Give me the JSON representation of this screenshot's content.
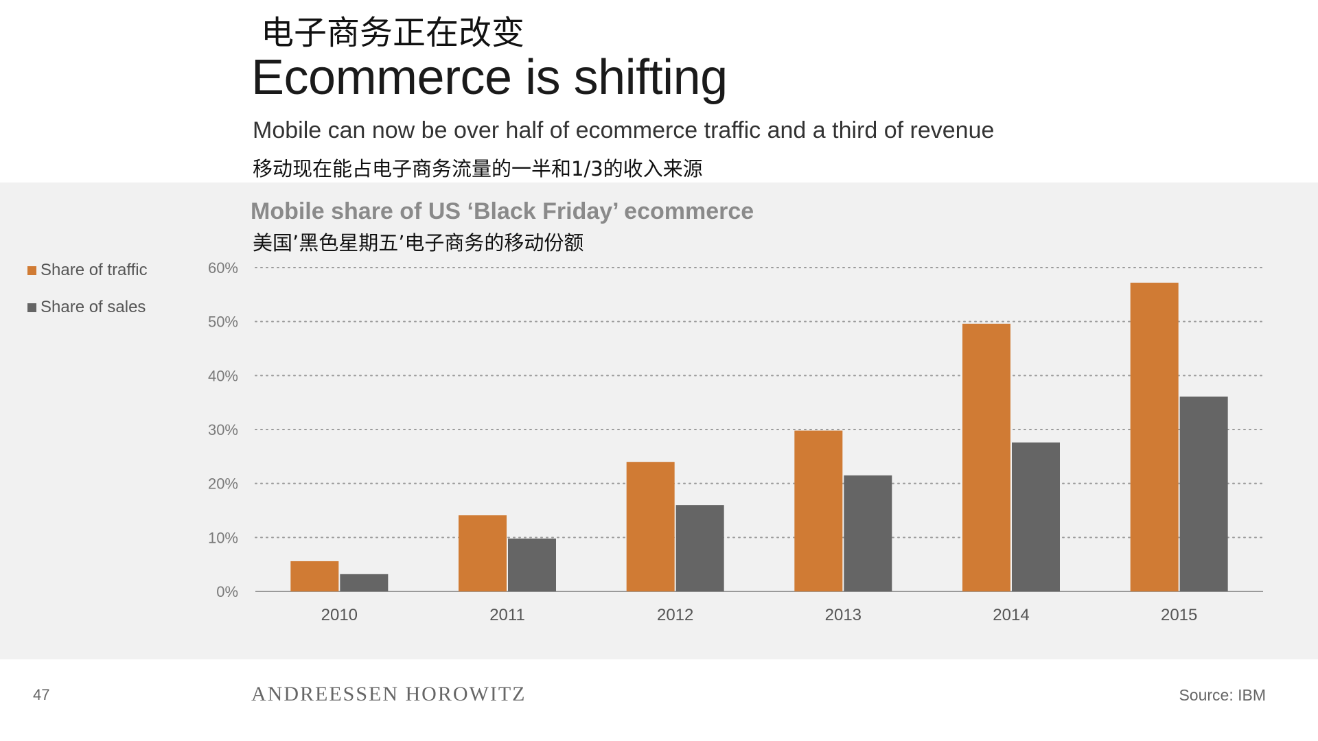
{
  "slide": {
    "title_cn": "电子商务正在改变",
    "title_en": "Ecommerce is shifting",
    "subtitle_en": "Mobile can now be over half of ecommerce traffic and a third of revenue",
    "subtitle_cn": "移动现在能占电子商务流量的一半和1/3的收入来源",
    "page_number": "47",
    "brand": "ANDREESSEN HOROWITZ",
    "source": "Source: IBM"
  },
  "chart_data": {
    "type": "bar",
    "title": "Mobile share of US ‘Black Friday’ ecommerce",
    "title_cn": "美国’黑色星期五’电子商务的移动份额",
    "categories": [
      "2010",
      "2011",
      "2012",
      "2013",
      "2014",
      "2015"
    ],
    "series": [
      {
        "name": "Share of traffic",
        "color": "#d07b34",
        "values": [
          5.6,
          14.1,
          24.0,
          29.8,
          49.6,
          57.2
        ]
      },
      {
        "name": "Share of sales",
        "color": "#656565",
        "values": [
          3.2,
          9.8,
          16.0,
          21.5,
          27.6,
          36.1
        ]
      }
    ],
    "y_ticks": [
      "0%",
      "10%",
      "20%",
      "30%",
      "40%",
      "50%",
      "60%"
    ],
    "ylim": [
      0,
      60
    ],
    "grid": true,
    "legend_position": "left"
  }
}
